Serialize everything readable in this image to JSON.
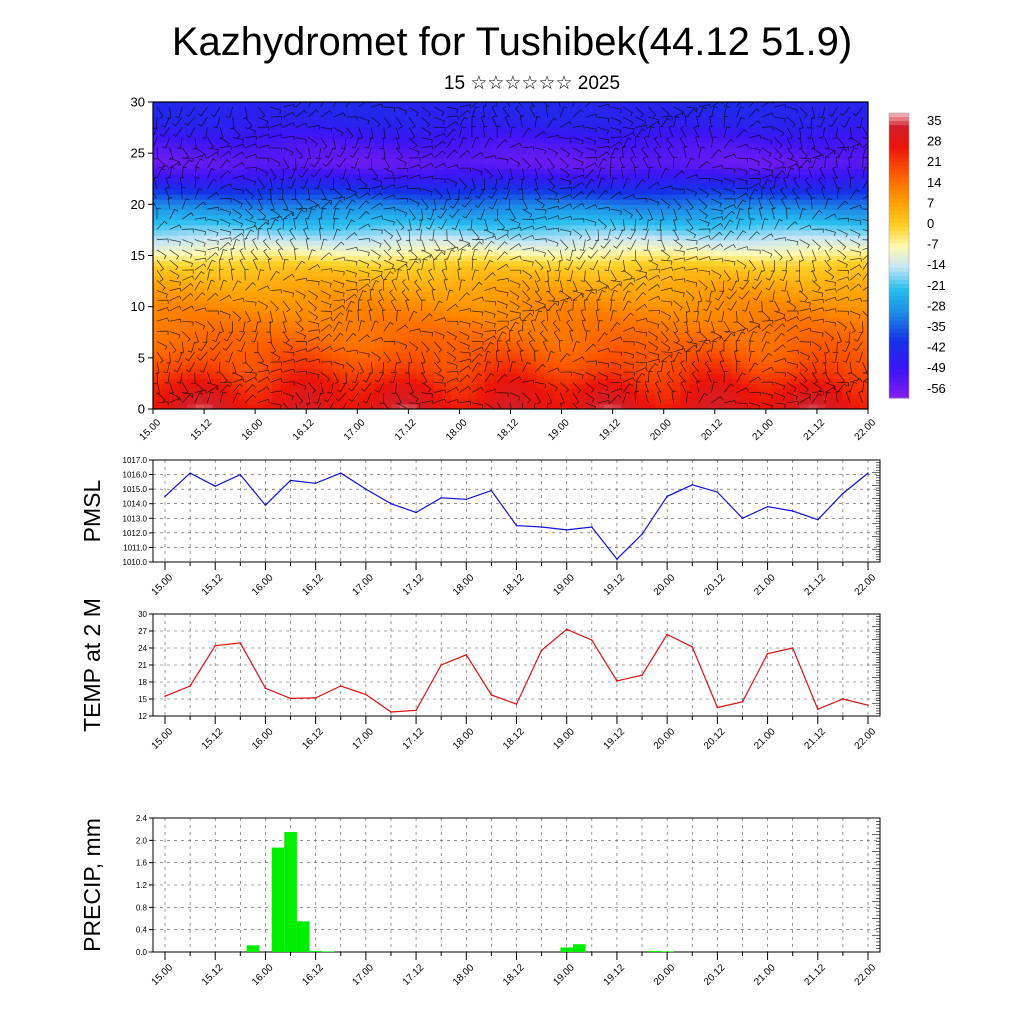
{
  "title": "Kazhydromet for Tushibek(44.12 51.9)",
  "subtitle": "15 ☆☆☆☆☆☆ 2025",
  "time_labels": [
    "15.00",
    "15.12",
    "16.00",
    "16.12",
    "17.00",
    "17.12",
    "18.00",
    "18.12",
    "19.00",
    "19.12",
    "20.00",
    "20.12",
    "21.00",
    "21.12",
    "22.00"
  ],
  "chart_data": [
    {
      "type": "heatmap",
      "name": "vertical-section",
      "x": "time_labels",
      "ylim": [
        0,
        30
      ],
      "yticks": [
        0,
        5,
        10,
        15,
        20,
        25,
        30
      ],
      "colorbar_labels": [
        "35",
        "28",
        "21",
        "14",
        "7",
        "0",
        "-7",
        "-14",
        "-21",
        "-28",
        "-35",
        "-42",
        "-49",
        "-56"
      ],
      "colorbar_range": [
        -60,
        38
      ],
      "height_profile": {
        "levels_km": [
          0,
          2,
          4,
          6,
          8,
          10,
          12,
          14,
          16,
          18,
          20,
          22,
          24,
          26,
          28,
          30
        ],
        "temp_c": [
          30,
          26,
          20,
          16,
          13,
          10,
          6,
          0,
          -12,
          -22,
          -32,
          -45,
          -56,
          -52,
          -46,
          -44
        ]
      },
      "wind_barbs": true
    },
    {
      "type": "line",
      "ylabel": "PMSL",
      "ylim": [
        1010.0,
        1017.0
      ],
      "yticks": [
        "1010.0",
        "1011.0",
        "1012.0",
        "1013.0",
        "1014.0",
        "1015.0",
        "1016.0",
        "1017.0"
      ],
      "color": "#1111dd",
      "x_hours": [
        0,
        6,
        12,
        18,
        24,
        30,
        36,
        42,
        48,
        54,
        60,
        66,
        72,
        78,
        84,
        90,
        96,
        102,
        108,
        114,
        120,
        126,
        132,
        138,
        144,
        150,
        156,
        162,
        168
      ],
      "values": [
        1014.5,
        1016.1,
        1015.2,
        1016.0,
        1013.9,
        1015.6,
        1015.4,
        1016.1,
        1015.0,
        1014.0,
        1013.4,
        1014.4,
        1014.3,
        1014.9,
        1012.5,
        1012.4,
        1012.2,
        1012.4,
        1010.2,
        1011.9,
        1014.5,
        1015.3,
        1014.8,
        1013.0,
        1013.8,
        1013.5,
        1012.9,
        1014.7,
        1016.1
      ]
    },
    {
      "type": "line",
      "ylabel": "TEMP at 2 M",
      "ylim": [
        12,
        30
      ],
      "yticks": [
        "12",
        "15",
        "18",
        "21",
        "24",
        "27",
        "30"
      ],
      "color": "#dd1111",
      "x_hours": [
        0,
        6,
        12,
        18,
        24,
        30,
        36,
        42,
        48,
        54,
        60,
        66,
        72,
        78,
        84,
        90,
        96,
        102,
        108,
        114,
        120,
        126,
        132,
        138,
        144,
        150,
        156,
        162,
        168
      ],
      "values": [
        15.5,
        17.3,
        24.4,
        24.9,
        16.9,
        15.1,
        15.2,
        17.3,
        15.8,
        12.7,
        13.0,
        21.0,
        22.8,
        15.7,
        14.1,
        23.6,
        27.3,
        25.4,
        18.2,
        19.2,
        26.4,
        24.2,
        13.5,
        14.5,
        23.0,
        24.0,
        13.2,
        15.0,
        13.9
      ]
    },
    {
      "type": "bar",
      "ylabel": "PRECIP, mm",
      "ylim": [
        0,
        2.4
      ],
      "yticks": [
        "0.0",
        "0.4",
        "0.8",
        "1.2",
        "1.6",
        "2.0",
        "2.4"
      ],
      "color": "#00ee00",
      "x_hours": [
        21,
        27,
        30,
        33,
        36,
        39,
        96,
        99,
        117,
        120
      ],
      "values": [
        0.12,
        1.87,
        2.15,
        0.55,
        0.02,
        0.01,
        0.08,
        0.14,
        0.02,
        0.01
      ]
    }
  ]
}
